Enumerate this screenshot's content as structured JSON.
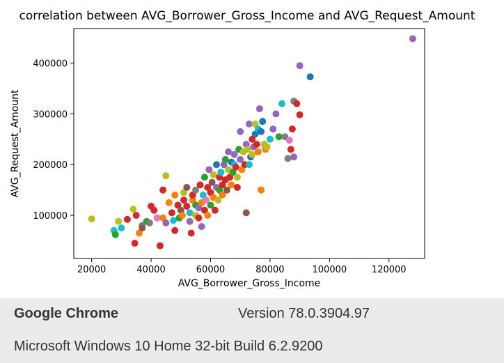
{
  "chart_data": {
    "type": "scatter",
    "title": "correlation between AVG_Borrower_Gross_Income and AVG_Request_Amount",
    "xlabel": "AVG_Borrower_Gross_Income",
    "ylabel": "AVG_Request_Amount",
    "xlim": [
      14000,
      132000
    ],
    "ylim": [
      15000,
      468000
    ],
    "xticks": [
      20000,
      40000,
      60000,
      80000,
      100000,
      120000
    ],
    "yticks": [
      100000,
      200000,
      300000,
      400000
    ],
    "grid": false,
    "colors": [
      "#1f77b4",
      "#ff7f0e",
      "#2ca02c",
      "#d62728",
      "#9467bd",
      "#8c564b",
      "#e377c2",
      "#7f7f7f",
      "#bcbd22",
      "#17becf"
    ],
    "points": [
      [
        20000,
        93000,
        8
      ],
      [
        27500,
        70000,
        9
      ],
      [
        28000,
        62000,
        2
      ],
      [
        29000,
        88000,
        8
      ],
      [
        30000,
        75000,
        9
      ],
      [
        32000,
        92000,
        3
      ],
      [
        34000,
        112000,
        8
      ],
      [
        34500,
        45000,
        3
      ],
      [
        35000,
        100000,
        3
      ],
      [
        36000,
        65000,
        1
      ],
      [
        37000,
        80000,
        7
      ],
      [
        37000,
        75000,
        5
      ],
      [
        38500,
        88000,
        2
      ],
      [
        39500,
        85000,
        7
      ],
      [
        40000,
        118000,
        3
      ],
      [
        41000,
        110000,
        3
      ],
      [
        42000,
        95000,
        6
      ],
      [
        43000,
        40000,
        3
      ],
      [
        44000,
        150000,
        3
      ],
      [
        44000,
        95000,
        1
      ],
      [
        45000,
        178000,
        8
      ],
      [
        45000,
        85000,
        4
      ],
      [
        46000,
        125000,
        1
      ],
      [
        47000,
        105000,
        3
      ],
      [
        47500,
        90000,
        9
      ],
      [
        48000,
        70000,
        3
      ],
      [
        48000,
        140000,
        1
      ],
      [
        49000,
        120000,
        3
      ],
      [
        49500,
        95000,
        2
      ],
      [
        50000,
        110000,
        5
      ],
      [
        50500,
        100000,
        1
      ],
      [
        51000,
        130000,
        3
      ],
      [
        51000,
        145000,
        8
      ],
      [
        52000,
        155000,
        5
      ],
      [
        52000,
        118000,
        3
      ],
      [
        53000,
        88000,
        4
      ],
      [
        53000,
        105000,
        9
      ],
      [
        53500,
        65000,
        3
      ],
      [
        54000,
        130000,
        1
      ],
      [
        54000,
        140000,
        3
      ],
      [
        55000,
        100000,
        8
      ],
      [
        55000,
        150000,
        7
      ],
      [
        55000,
        120000,
        2
      ],
      [
        56000,
        115000,
        4
      ],
      [
        56000,
        95000,
        3
      ],
      [
        56500,
        160000,
        3
      ],
      [
        57000,
        125000,
        1
      ],
      [
        57000,
        78000,
        4
      ],
      [
        57500,
        140000,
        9
      ],
      [
        58000,
        110000,
        3
      ],
      [
        58000,
        175000,
        2
      ],
      [
        58500,
        130000,
        6
      ],
      [
        59000,
        155000,
        3
      ],
      [
        59000,
        100000,
        1
      ],
      [
        59500,
        190000,
        4
      ],
      [
        60000,
        145000,
        3
      ],
      [
        60000,
        120000,
        2
      ],
      [
        60500,
        165000,
        5
      ],
      [
        61000,
        135000,
        1
      ],
      [
        61000,
        180000,
        8
      ],
      [
        61500,
        110000,
        3
      ],
      [
        62000,
        155000,
        4
      ],
      [
        62000,
        200000,
        0
      ],
      [
        62500,
        130000,
        8
      ],
      [
        63000,
        175000,
        3
      ],
      [
        63000,
        150000,
        2
      ],
      [
        63500,
        185000,
        9
      ],
      [
        64000,
        160000,
        3
      ],
      [
        64000,
        140000,
        1
      ],
      [
        64500,
        200000,
        4
      ],
      [
        65000,
        170000,
        3
      ],
      [
        65000,
        210000,
        2
      ],
      [
        65500,
        150000,
        5
      ],
      [
        66000,
        190000,
        8
      ],
      [
        66000,
        225000,
        4
      ],
      [
        66500,
        175000,
        3
      ],
      [
        67000,
        205000,
        0
      ],
      [
        67000,
        160000,
        1
      ],
      [
        67500,
        185000,
        2
      ],
      [
        68000,
        220000,
        4
      ],
      [
        68000,
        200000,
        9
      ],
      [
        68500,
        195000,
        3
      ],
      [
        69000,
        175000,
        8
      ],
      [
        69000,
        155000,
        3
      ],
      [
        69500,
        230000,
        2
      ],
      [
        70000,
        210000,
        4
      ],
      [
        70000,
        265000,
        4
      ],
      [
        70500,
        190000,
        1
      ],
      [
        71000,
        225000,
        8
      ],
      [
        71500,
        200000,
        3
      ],
      [
        72000,
        105000,
        5
      ],
      [
        72000,
        240000,
        4
      ],
      [
        72500,
        230000,
        8
      ],
      [
        73000,
        280000,
        4
      ],
      [
        73000,
        200000,
        9
      ],
      [
        73500,
        215000,
        0
      ],
      [
        74000,
        250000,
        3
      ],
      [
        74000,
        220000,
        8
      ],
      [
        74500,
        235000,
        4
      ],
      [
        75000,
        260000,
        0
      ],
      [
        75000,
        280000,
        8
      ],
      [
        75500,
        240000,
        3
      ],
      [
        76000,
        270000,
        9
      ],
      [
        76000,
        225000,
        1
      ],
      [
        76500,
        310000,
        4
      ],
      [
        77000,
        150000,
        1
      ],
      [
        77000,
        265000,
        0
      ],
      [
        77500,
        285000,
        0
      ],
      [
        78000,
        240000,
        8
      ],
      [
        78500,
        230000,
        1
      ],
      [
        79000,
        235000,
        8
      ],
      [
        80000,
        250000,
        9
      ],
      [
        81000,
        270000,
        4
      ],
      [
        82000,
        300000,
        4
      ],
      [
        83000,
        255000,
        2
      ],
      [
        84000,
        320000,
        9
      ],
      [
        85000,
        255000,
        7
      ],
      [
        86000,
        212000,
        7
      ],
      [
        86500,
        248000,
        6
      ],
      [
        87000,
        230000,
        3
      ],
      [
        87500,
        270000,
        3
      ],
      [
        88000,
        325000,
        7
      ],
      [
        88000,
        215000,
        4
      ],
      [
        89000,
        320000,
        3
      ],
      [
        90000,
        298000,
        3
      ],
      [
        90000,
        395000,
        4
      ],
      [
        93500,
        373000,
        0
      ],
      [
        128000,
        448000,
        4
      ]
    ]
  },
  "footer": {
    "browser_name": "Google Chrome",
    "version": "Version 78.0.3904.97",
    "os": "Microsoft Windows 10 Home 32-bit Build 6.2.9200"
  }
}
